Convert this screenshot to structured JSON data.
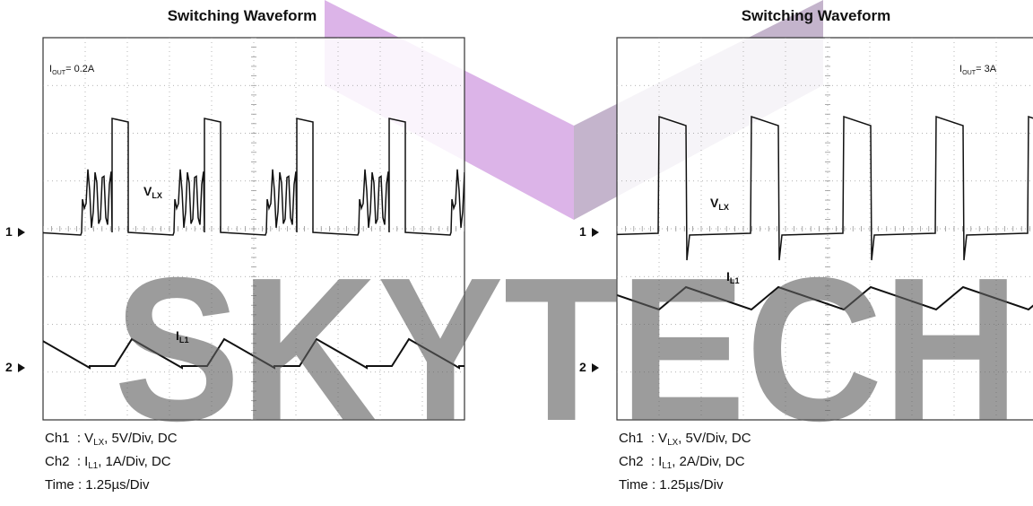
{
  "panels": [
    {
      "title": "Switching Waveform",
      "condition": {
        "main": "I",
        "sub": "OUT",
        "rest": "= 0.2A"
      },
      "ch1_label": {
        "main": "V",
        "sub": "LX"
      },
      "ch2_label": {
        "main": "I",
        "sub": "L1"
      },
      "markers": [
        "1",
        "2"
      ],
      "caption": [
        {
          "pre": "Ch1  : V",
          "sub": "LX",
          "post": ", 5V/Div, DC"
        },
        {
          "pre": "Ch2  : I",
          "sub": "L1",
          "post": ", 1A/Div, DC"
        },
        {
          "pre": "Time : 1.25µs/Div"
        }
      ]
    },
    {
      "title": "Switching Waveform",
      "condition": {
        "main": "I",
        "sub": "OUT",
        "rest": "= 3A"
      },
      "ch1_label": {
        "main": "V",
        "sub": "LX"
      },
      "ch2_label": {
        "main": "I",
        "sub": "L1"
      },
      "markers": [
        "1",
        "2"
      ],
      "caption": [
        {
          "pre": "Ch1  : V",
          "sub": "LX",
          "post": ", 5V/Div, DC"
        },
        {
          "pre": "Ch2  : I",
          "sub": "L1",
          "post": ", 2A/Div, DC"
        },
        {
          "pre": "Time : 1.25µs/Div"
        }
      ]
    }
  ],
  "watermark": "SKYTECH"
}
